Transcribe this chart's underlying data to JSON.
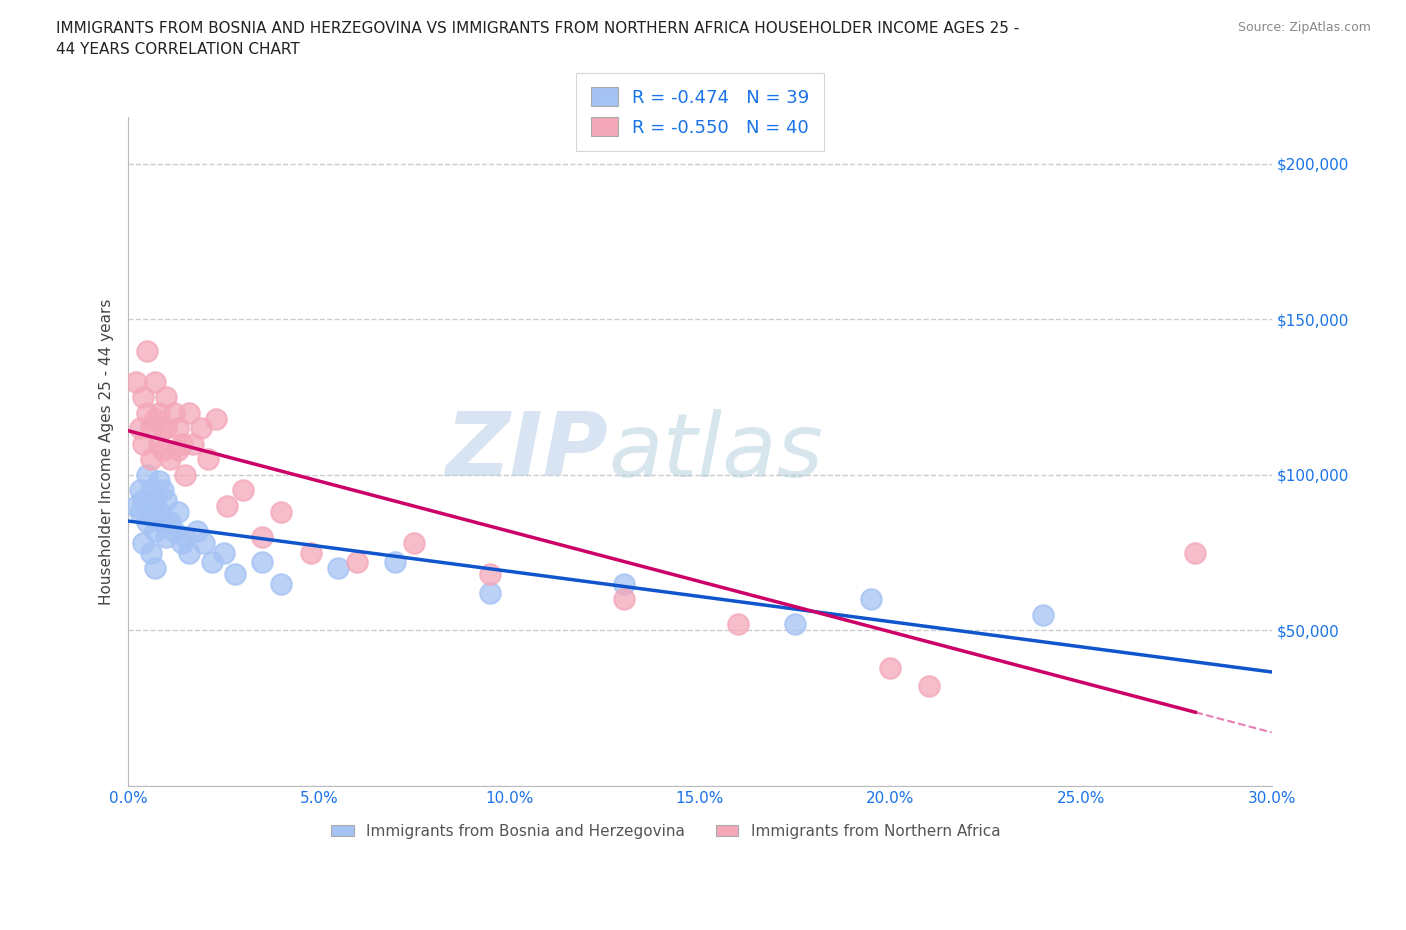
{
  "title_line1": "IMMIGRANTS FROM BOSNIA AND HERZEGOVINA VS IMMIGRANTS FROM NORTHERN AFRICA HOUSEHOLDER INCOME AGES 25 -",
  "title_line2": "44 YEARS CORRELATION CHART",
  "source": "Source: ZipAtlas.com",
  "ylabel": "Householder Income Ages 25 - 44 years",
  "xlim": [
    0.0,
    0.3
  ],
  "ylim": [
    0,
    215000
  ],
  "xticks": [
    0.0,
    0.05,
    0.1,
    0.15,
    0.2,
    0.25,
    0.3
  ],
  "xticklabels": [
    "0.0%",
    "5.0%",
    "10.0%",
    "15.0%",
    "20.0%",
    "25.0%",
    "30.0%"
  ],
  "yticks": [
    0,
    50000,
    100000,
    150000,
    200000
  ],
  "yticklabels": [
    "",
    "$50,000",
    "$100,000",
    "$150,000",
    "$200,000"
  ],
  "watermark_zip": "ZIP",
  "watermark_atlas": "atlas",
  "legend_R1": "-0.474",
  "legend_N1": "39",
  "legend_R2": "-0.550",
  "legend_N2": "40",
  "color_bosnia": "#a4c2f4",
  "color_northern_africa": "#f4a7b9",
  "line_color_bosnia": "#1155cc",
  "line_color_northern_africa": "#cc0066",
  "label_bosnia": "Immigrants from Bosnia and Herzegovina",
  "label_northern_africa": "Immigrants from Northern Africa",
  "bosnia_x": [
    0.002,
    0.003,
    0.003,
    0.004,
    0.004,
    0.005,
    0.005,
    0.006,
    0.006,
    0.006,
    0.007,
    0.007,
    0.007,
    0.008,
    0.008,
    0.009,
    0.009,
    0.01,
    0.01,
    0.011,
    0.012,
    0.013,
    0.014,
    0.015,
    0.016,
    0.018,
    0.02,
    0.022,
    0.025,
    0.028,
    0.035,
    0.04,
    0.055,
    0.07,
    0.095,
    0.13,
    0.175,
    0.195,
    0.24
  ],
  "bosnia_y": [
    90000,
    95000,
    88000,
    92000,
    78000,
    100000,
    85000,
    95000,
    88000,
    75000,
    92000,
    82000,
    70000,
    98000,
    88000,
    85000,
    95000,
    80000,
    92000,
    85000,
    82000,
    88000,
    78000,
    80000,
    75000,
    82000,
    78000,
    72000,
    75000,
    68000,
    72000,
    65000,
    70000,
    72000,
    62000,
    65000,
    52000,
    60000,
    55000
  ],
  "northern_africa_x": [
    0.002,
    0.003,
    0.004,
    0.004,
    0.005,
    0.005,
    0.006,
    0.006,
    0.007,
    0.007,
    0.008,
    0.008,
    0.009,
    0.009,
    0.01,
    0.01,
    0.011,
    0.012,
    0.013,
    0.013,
    0.014,
    0.015,
    0.016,
    0.017,
    0.019,
    0.021,
    0.023,
    0.026,
    0.03,
    0.035,
    0.04,
    0.048,
    0.06,
    0.075,
    0.095,
    0.13,
    0.16,
    0.2,
    0.21,
    0.28
  ],
  "northern_africa_y": [
    130000,
    115000,
    125000,
    110000,
    140000,
    120000,
    115000,
    105000,
    130000,
    118000,
    110000,
    120000,
    115000,
    108000,
    125000,
    115000,
    105000,
    120000,
    115000,
    108000,
    110000,
    100000,
    120000,
    110000,
    115000,
    105000,
    118000,
    90000,
    95000,
    80000,
    88000,
    75000,
    72000,
    78000,
    68000,
    60000,
    52000,
    38000,
    32000,
    75000
  ]
}
